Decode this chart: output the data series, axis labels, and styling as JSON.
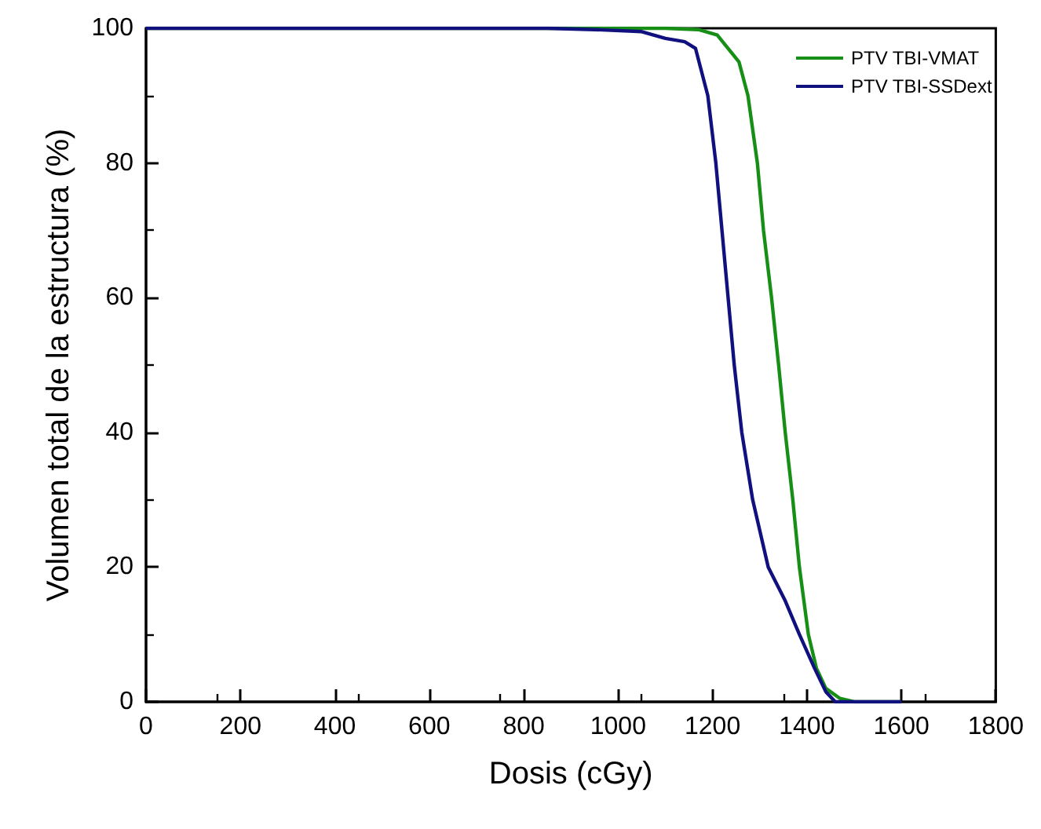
{
  "chart_data": {
    "type": "line",
    "xlabel": "Dosis (cGy)",
    "ylabel": "Volumen total de la estructura (%)",
    "xlim": [
      0,
      1800
    ],
    "xticks": [
      0,
      200,
      400,
      600,
      800,
      1000,
      1200,
      1400,
      1600,
      1800
    ],
    "ylim": [
      0,
      100
    ],
    "yticks": [
      0,
      20,
      40,
      60,
      80,
      100
    ],
    "grid": false,
    "legend": "top right",
    "marker": "none",
    "line_style": "solid",
    "series": [
      {
        "name": "PTV TBI-VMAT",
        "color": "#178f17",
        "x": [
          0,
          1100,
          1170,
          1210,
          1256,
          1275,
          1295,
          1308,
          1325,
          1340,
          1354,
          1370,
          1384,
          1403,
          1420,
          1440,
          1470,
          1500,
          1600
        ],
        "values": [
          100,
          100,
          99.8,
          99,
          95,
          90,
          80,
          70,
          60,
          50,
          40,
          30,
          20,
          10,
          5,
          2,
          0.5,
          0,
          0
        ]
      },
      {
        "name": "PTV TBI-SSDext",
        "color": "#10107f",
        "x": [
          0,
          850,
          950,
          1050,
          1100,
          1141,
          1164,
          1190,
          1207,
          1233,
          1246,
          1262,
          1285,
          1318,
          1354,
          1384,
          1416,
          1440,
          1460,
          1600
        ],
        "values": [
          100,
          100,
          99.8,
          99.5,
          98.5,
          98,
          97,
          90,
          80,
          60,
          50,
          40,
          30,
          20,
          15,
          10,
          5,
          1.5,
          0,
          0
        ]
      }
    ]
  }
}
